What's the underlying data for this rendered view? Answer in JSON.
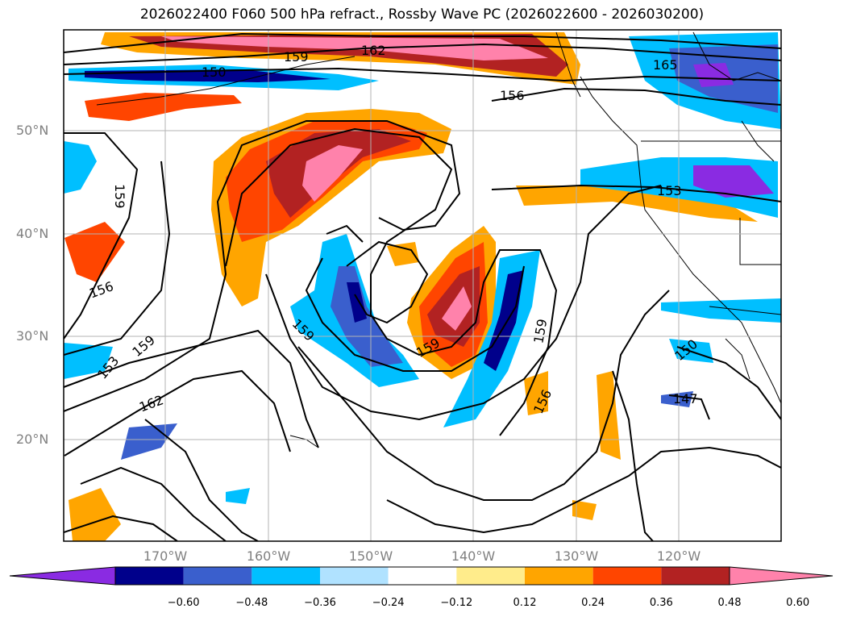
{
  "title": "2026022400 F060 500 hPa refract., Rossby Wave PC (2026022600 - 2026030200)",
  "lat_labels": [
    {
      "label": "50°N",
      "lat": 50
    },
    {
      "label": "40°N",
      "lat": 40
    },
    {
      "label": "30°N",
      "lat": 30
    },
    {
      "label": "20°N",
      "lat": 20
    }
  ],
  "lon_labels": [
    {
      "label": "170°W",
      "lon": -170
    },
    {
      "label": "160°W",
      "lon": -160
    },
    {
      "label": "150°W",
      "lon": -150
    },
    {
      "label": "140°W",
      "lon": -140
    },
    {
      "label": "130°W",
      "lon": -130
    },
    {
      "label": "120°W",
      "lon": -120
    }
  ],
  "contour_labels": [
    "162",
    "159",
    "150",
    "156",
    "165",
    "153",
    "159",
    "156",
    "159",
    "153",
    "159",
    "162",
    "150",
    "159",
    "159",
    "156",
    "150",
    "147"
  ],
  "colorbar": {
    "colors": [
      "#8a2be2",
      "#00008b",
      "#3a5fcd",
      "#00bfff",
      "#b0e2ff",
      "#ffffff",
      "#ffec8b",
      "#ffa500",
      "#ff4500",
      "#b22222",
      "#ff82ab"
    ],
    "ticks": [
      "−0.60",
      "−0.48",
      "−0.36",
      "−0.24",
      "−0.12",
      "0.12",
      "0.24",
      "0.36",
      "0.48",
      "0.60"
    ]
  }
}
